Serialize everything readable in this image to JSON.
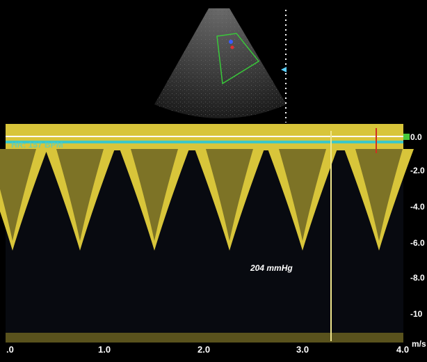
{
  "overlay": {
    "heart_rate": "HR: 157 BPM",
    "pressure_gradient": "204 mmHg"
  },
  "velocity_scale": {
    "labels": [
      "0.0",
      "-2.0",
      "-4.0",
      "-6.0",
      "-8.0",
      "-10"
    ],
    "unit": "m/s"
  },
  "time_scale": {
    "labels": [
      ".0",
      "1.0",
      "2.0",
      "3.0",
      "4.0"
    ]
  }
}
